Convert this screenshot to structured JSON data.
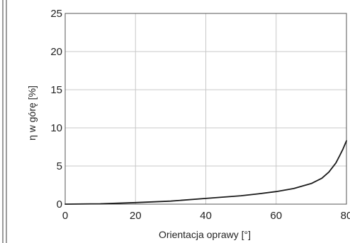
{
  "chart_data": {
    "type": "line",
    "title": "",
    "xlabel": "Orientacja oprawy [°]",
    "ylabel": "η w górę [%]",
    "xlim": [
      0,
      80
    ],
    "ylim": [
      0,
      25
    ],
    "xticks": [
      0,
      20,
      40,
      60,
      80
    ],
    "yticks": [
      0,
      5,
      10,
      15,
      20,
      25
    ],
    "grid": true,
    "legend": "none",
    "series": [
      {
        "x": [
          0,
          10,
          20,
          30,
          40,
          50,
          55,
          60,
          65,
          70,
          73,
          75,
          77,
          78,
          79,
          80
        ],
        "y": [
          0,
          0.05,
          0.2,
          0.4,
          0.75,
          1.1,
          1.35,
          1.65,
          2.05,
          2.7,
          3.4,
          4.2,
          5.4,
          6.3,
          7.2,
          8.3
        ]
      }
    ],
    "colors": {
      "line": "#1a1a1a",
      "grid": "#c8c8c8",
      "frame": "#555555",
      "background": "#ffffff"
    }
  }
}
